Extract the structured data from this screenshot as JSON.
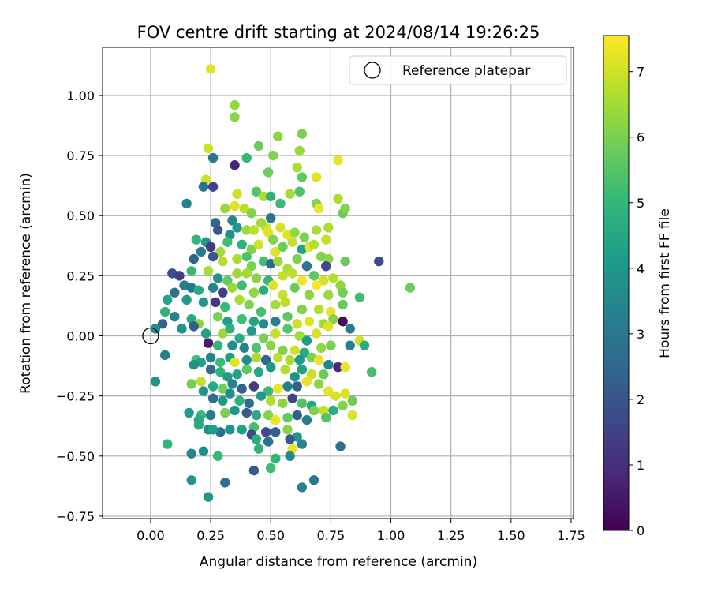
{
  "chart_data": {
    "type": "scatter",
    "title": "FOV centre drift starting at 2024/08/14 19:26:25",
    "xlabel": "Angular distance from reference (arcmin)",
    "ylabel": "Rotation from reference (arcmin)",
    "xlim": [
      -0.2,
      1.76
    ],
    "ylim": [
      -0.76,
      1.2
    ],
    "x_ticks": [
      "0.00",
      "0.25",
      "0.50",
      "0.75",
      "1.00",
      "1.25",
      "1.50",
      "1.75"
    ],
    "y_ticks": [
      "−0.75",
      "−0.50",
      "−0.25",
      "0.00",
      "0.25",
      "0.50",
      "0.75",
      "1.00"
    ],
    "grid": true,
    "legend": {
      "placement": "upper right",
      "entries": [
        {
          "label": "Reference platepar",
          "marker": "open circle",
          "x": 0,
          "y": 0
        }
      ]
    },
    "colorbar": {
      "label": "Hours from first FF file",
      "range": [
        0,
        7.55
      ],
      "ticks": [
        "0",
        "1",
        "2",
        "3",
        "4",
        "5",
        "6",
        "7"
      ],
      "colormap": "viridis",
      "stops": [
        "#440154",
        "#482878",
        "#3e4989",
        "#31688e",
        "#26828e",
        "#1f9e89",
        "#35b779",
        "#6ece58",
        "#b5de2b",
        "#fde725"
      ]
    },
    "points": [
      [
        0.25,
        1.11,
        7.2
      ],
      [
        0.35,
        0.96,
        6.3
      ],
      [
        0.35,
        0.91,
        6.2
      ],
      [
        0.24,
        0.78,
        7.0
      ],
      [
        0.26,
        0.74,
        3.0
      ],
      [
        0.35,
        0.71,
        0.8
      ],
      [
        0.4,
        0.74,
        5.1
      ],
      [
        0.45,
        0.79,
        5.8
      ],
      [
        0.53,
        0.83,
        6.2
      ],
      [
        0.63,
        0.84,
        6.0
      ],
      [
        0.51,
        0.75,
        6.1
      ],
      [
        0.62,
        0.77,
        6.4
      ],
      [
        0.61,
        0.7,
        6.6
      ],
      [
        0.78,
        0.73,
        7.3
      ],
      [
        0.49,
        0.68,
        5.8
      ],
      [
        0.63,
        0.66,
        5.7
      ],
      [
        0.69,
        0.66,
        7.2
      ],
      [
        0.23,
        0.65,
        7.0
      ],
      [
        0.22,
        0.62,
        2.9
      ],
      [
        0.26,
        0.62,
        1.6
      ],
      [
        0.36,
        0.59,
        7.0
      ],
      [
        0.44,
        0.6,
        5.5
      ],
      [
        0.47,
        0.58,
        6.6
      ],
      [
        0.5,
        0.58,
        4.8
      ],
      [
        0.54,
        0.55,
        5.1
      ],
      [
        0.58,
        0.59,
        6.5
      ],
      [
        0.62,
        0.6,
        5.4
      ],
      [
        0.69,
        0.55,
        6.1
      ],
      [
        0.78,
        0.57,
        6.6
      ],
      [
        0.8,
        0.51,
        5.8
      ],
      [
        0.81,
        0.53,
        6.1
      ],
      [
        0.7,
        0.53,
        7.3
      ],
      [
        0.15,
        0.55,
        3.4
      ],
      [
        0.31,
        0.53,
        6.4
      ],
      [
        0.35,
        0.54,
        7.2
      ],
      [
        0.39,
        0.53,
        6.8
      ],
      [
        0.42,
        0.51,
        6.1
      ],
      [
        0.5,
        0.49,
        2.9
      ],
      [
        0.27,
        0.47,
        2.5
      ],
      [
        0.34,
        0.48,
        3.6
      ],
      [
        0.4,
        0.44,
        6.4
      ],
      [
        0.43,
        0.44,
        6.8
      ],
      [
        0.48,
        0.45,
        7.0
      ],
      [
        0.49,
        0.43,
        7.2
      ],
      [
        0.46,
        0.47,
        6.5
      ],
      [
        0.54,
        0.45,
        7.1
      ],
      [
        0.57,
        0.42,
        7.2
      ],
      [
        0.6,
        0.43,
        6.3
      ],
      [
        0.64,
        0.41,
        6.0
      ],
      [
        0.69,
        0.44,
        6.6
      ],
      [
        0.74,
        0.45,
        6.6
      ],
      [
        0.73,
        0.4,
        6.9
      ],
      [
        0.28,
        0.44,
        2.0
      ],
      [
        0.33,
        0.42,
        3.8
      ],
      [
        0.36,
        0.45,
        4.0
      ],
      [
        0.19,
        0.4,
        5.0
      ],
      [
        0.23,
        0.39,
        4.0
      ],
      [
        0.25,
        0.37,
        1.3
      ],
      [
        0.29,
        0.35,
        6.5
      ],
      [
        0.32,
        0.39,
        5.2
      ],
      [
        0.38,
        0.38,
        4.8
      ],
      [
        0.42,
        0.36,
        6.1
      ],
      [
        0.45,
        0.38,
        7.0
      ],
      [
        0.51,
        0.4,
        6.1
      ],
      [
        0.52,
        0.35,
        7.2
      ],
      [
        0.55,
        0.37,
        5.8
      ],
      [
        0.59,
        0.39,
        6.9
      ],
      [
        0.63,
        0.36,
        4.4
      ],
      [
        0.66,
        0.37,
        7.3
      ],
      [
        0.68,
        0.38,
        6.7
      ],
      [
        0.71,
        0.33,
        6.1
      ],
      [
        0.74,
        0.32,
        6.2
      ],
      [
        0.18,
        0.32,
        2.5
      ],
      [
        0.21,
        0.35,
        3.1
      ],
      [
        0.26,
        0.33,
        2.0
      ],
      [
        0.3,
        0.31,
        6.7
      ],
      [
        0.36,
        0.32,
        6.6
      ],
      [
        0.4,
        0.33,
        5.4
      ],
      [
        0.42,
        0.29,
        6.0
      ],
      [
        0.47,
        0.31,
        5.3
      ],
      [
        0.5,
        0.3,
        2.6
      ],
      [
        0.53,
        0.31,
        6.4
      ],
      [
        0.57,
        0.28,
        6.6
      ],
      [
        0.61,
        0.32,
        6.0
      ],
      [
        0.65,
        0.29,
        3.0
      ],
      [
        0.73,
        0.29,
        1.7
      ],
      [
        0.81,
        0.31,
        5.8
      ],
      [
        0.95,
        0.31,
        1.7
      ],
      [
        0.09,
        0.26,
        1.8
      ],
      [
        0.12,
        0.25,
        1.4
      ],
      [
        0.17,
        0.27,
        5.1
      ],
      [
        0.24,
        0.27,
        6.6
      ],
      [
        0.28,
        0.24,
        3.8
      ],
      [
        0.32,
        0.23,
        5.7
      ],
      [
        0.36,
        0.26,
        6.4
      ],
      [
        0.4,
        0.26,
        6.5
      ],
      [
        0.44,
        0.24,
        6.2
      ],
      [
        0.49,
        0.23,
        5.0
      ],
      [
        0.55,
        0.25,
        6.9
      ],
      [
        0.59,
        0.26,
        6.8
      ],
      [
        0.63,
        0.23,
        7.4
      ],
      [
        0.68,
        0.25,
        5.6
      ],
      [
        0.72,
        0.23,
        7.1
      ],
      [
        0.76,
        0.24,
        6.7
      ],
      [
        0.79,
        0.21,
        6.3
      ],
      [
        0.14,
        0.21,
        3.2
      ],
      [
        0.17,
        0.2,
        2.9
      ],
      [
        0.2,
        0.19,
        4.6
      ],
      [
        0.26,
        0.2,
        3.4
      ],
      [
        0.3,
        0.18,
        1.4
      ],
      [
        0.34,
        0.2,
        6.4
      ],
      [
        0.38,
        0.21,
        5.2
      ],
      [
        0.43,
        0.18,
        6.3
      ],
      [
        0.47,
        0.19,
        4.6
      ],
      [
        0.51,
        0.21,
        7.2
      ],
      [
        0.55,
        0.17,
        6.9
      ],
      [
        0.6,
        0.2,
        5.8
      ],
      [
        0.66,
        0.17,
        6.2
      ],
      [
        0.69,
        0.21,
        7.5
      ],
      [
        0.74,
        0.17,
        6.4
      ],
      [
        0.8,
        0.18,
        5.9
      ],
      [
        0.87,
        0.16,
        5.2
      ],
      [
        1.08,
        0.2,
        5.8
      ],
      [
        0.07,
        0.15,
        4.4
      ],
      [
        0.1,
        0.18,
        2.8
      ],
      [
        0.15,
        0.15,
        4.1
      ],
      [
        0.22,
        0.14,
        3.9
      ],
      [
        0.27,
        0.14,
        1.2
      ],
      [
        0.31,
        0.12,
        5.1
      ],
      [
        0.37,
        0.15,
        6.6
      ],
      [
        0.41,
        0.13,
        6.1
      ],
      [
        0.46,
        0.1,
        5.3
      ],
      [
        0.52,
        0.13,
        6.5
      ],
      [
        0.56,
        0.14,
        6.8
      ],
      [
        0.63,
        0.11,
        6.1
      ],
      [
        0.7,
        0.11,
        6.7
      ],
      [
        0.75,
        0.1,
        7.3
      ],
      [
        0.8,
        0.13,
        5.7
      ],
      [
        0.06,
        0.1,
        4.8
      ],
      [
        0.1,
        0.08,
        3.4
      ],
      [
        0.17,
        0.07,
        4.5
      ],
      [
        0.2,
        0.05,
        6.2
      ],
      [
        0.28,
        0.08,
        6.0
      ],
      [
        0.32,
        0.06,
        4.2
      ],
      [
        0.38,
        0.07,
        5.2
      ],
      [
        0.43,
        0.06,
        4.4
      ],
      [
        0.47,
        0.05,
        3.6
      ],
      [
        0.52,
        0.06,
        3.2
      ],
      [
        0.57,
        0.08,
        5.6
      ],
      [
        0.61,
        0.05,
        7.0
      ],
      [
        0.66,
        0.06,
        7.2
      ],
      [
        0.72,
        0.05,
        6.5
      ],
      [
        0.76,
        0.07,
        6.1
      ],
      [
        0.8,
        0.06,
        0.2
      ],
      [
        0.83,
        0.03,
        3.2
      ],
      [
        0.05,
        0.05,
        2.3
      ],
      [
        0.02,
        0.03,
        3.6
      ],
      [
        0.13,
        0.03,
        3.9
      ],
      [
        0.18,
        0.04,
        2.2
      ],
      [
        0.23,
        0.01,
        4.3
      ],
      [
        0.3,
        0.01,
        6.4
      ],
      [
        0.33,
        0.03,
        4.8
      ],
      [
        0.37,
        -0.01,
        4.7
      ],
      [
        0.42,
        0.02,
        4.0
      ],
      [
        0.47,
        -0.01,
        6.0
      ],
      [
        0.52,
        0.01,
        6.9
      ],
      [
        0.57,
        0.03,
        5.5
      ],
      [
        0.62,
        0.0,
        6.5
      ],
      [
        0.65,
        -0.02,
        4.1
      ],
      [
        0.69,
        0.01,
        7.1
      ],
      [
        0.74,
        0.04,
        7.2
      ],
      [
        0.24,
        -0.03,
        0.6
      ],
      [
        0.28,
        -0.04,
        5.0
      ],
      [
        0.34,
        -0.04,
        3.7
      ],
      [
        0.39,
        -0.05,
        3.4
      ],
      [
        0.44,
        -0.05,
        5.4
      ],
      [
        0.5,
        -0.04,
        6.2
      ],
      [
        0.55,
        -0.06,
        6.1
      ],
      [
        0.6,
        -0.06,
        7.0
      ],
      [
        0.64,
        -0.07,
        4.6
      ],
      [
        0.71,
        -0.05,
        6.3
      ],
      [
        0.75,
        -0.04,
        6.0
      ],
      [
        0.83,
        -0.04,
        3.3
      ],
      [
        0.87,
        -0.02,
        7.0
      ],
      [
        0.89,
        -0.04,
        4.7
      ],
      [
        0.06,
        -0.08,
        3.3
      ],
      [
        0.19,
        -0.1,
        5.3
      ],
      [
        0.21,
        -0.11,
        4.3
      ],
      [
        0.25,
        -0.09,
        3.4
      ],
      [
        0.29,
        -0.11,
        5.1
      ],
      [
        0.33,
        -0.09,
        4.2
      ],
      [
        0.35,
        -0.11,
        7.2
      ],
      [
        0.4,
        -0.1,
        3.6
      ],
      [
        0.44,
        -0.09,
        6.6
      ],
      [
        0.48,
        -0.1,
        2.4
      ],
      [
        0.53,
        -0.09,
        6.8
      ],
      [
        0.58,
        -0.1,
        6.6
      ],
      [
        0.62,
        -0.1,
        4.0
      ],
      [
        0.67,
        -0.09,
        6.0
      ],
      [
        0.7,
        -0.1,
        7.3
      ],
      [
        0.74,
        -0.12,
        3.5
      ],
      [
        0.78,
        -0.13,
        0.9
      ],
      [
        0.81,
        -0.13,
        7.3
      ],
      [
        0.92,
        -0.15,
        5.3
      ],
      [
        0.18,
        -0.12,
        3.8
      ],
      [
        0.25,
        -0.14,
        2.7
      ],
      [
        0.29,
        -0.15,
        4.9
      ],
      [
        0.32,
        -0.17,
        4.1
      ],
      [
        0.36,
        -0.16,
        4.3
      ],
      [
        0.4,
        -0.14,
        5.6
      ],
      [
        0.45,
        -0.15,
        4.5
      ],
      [
        0.5,
        -0.13,
        4.0
      ],
      [
        0.56,
        -0.14,
        6.7
      ],
      [
        0.6,
        -0.17,
        3.8
      ],
      [
        0.63,
        -0.14,
        4.3
      ],
      [
        0.67,
        -0.16,
        6.9
      ],
      [
        0.72,
        -0.16,
        5.8
      ],
      [
        0.02,
        -0.19,
        3.9
      ],
      [
        0.17,
        -0.2,
        5.9
      ],
      [
        0.21,
        -0.19,
        6.9
      ],
      [
        0.26,
        -0.21,
        4.6
      ],
      [
        0.3,
        -0.22,
        5.9
      ],
      [
        0.34,
        -0.2,
        3.5
      ],
      [
        0.38,
        -0.22,
        2.4
      ],
      [
        0.43,
        -0.21,
        1.4
      ],
      [
        0.49,
        -0.23,
        5.1
      ],
      [
        0.53,
        -0.22,
        7.3
      ],
      [
        0.57,
        -0.21,
        3.2
      ],
      [
        0.61,
        -0.21,
        2.3
      ],
      [
        0.65,
        -0.19,
        7.3
      ],
      [
        0.7,
        -0.2,
        6.2
      ],
      [
        0.74,
        -0.23,
        7.3
      ],
      [
        0.77,
        -0.25,
        7.1
      ],
      [
        0.81,
        -0.24,
        7.2
      ],
      [
        0.84,
        -0.27,
        5.8
      ],
      [
        0.22,
        -0.23,
        3.9
      ],
      [
        0.26,
        -0.26,
        2.7
      ],
      [
        0.3,
        -0.27,
        4.0
      ],
      [
        0.33,
        -0.24,
        3.7
      ],
      [
        0.37,
        -0.27,
        4.8
      ],
      [
        0.41,
        -0.28,
        2.7
      ],
      [
        0.46,
        -0.25,
        4.1
      ],
      [
        0.5,
        -0.27,
        6.7
      ],
      [
        0.55,
        -0.28,
        6.2
      ],
      [
        0.59,
        -0.26,
        1.6
      ],
      [
        0.63,
        -0.28,
        5.4
      ],
      [
        0.67,
        -0.29,
        4.4
      ],
      [
        0.72,
        -0.31,
        6.9
      ],
      [
        0.76,
        -0.31,
        4.7
      ],
      [
        0.8,
        -0.29,
        6.1
      ],
      [
        0.84,
        -0.33,
        7.2
      ],
      [
        0.16,
        -0.32,
        4.2
      ],
      [
        0.21,
        -0.33,
        5.1
      ],
      [
        0.25,
        -0.33,
        3.1
      ],
      [
        0.31,
        -0.32,
        6.0
      ],
      [
        0.35,
        -0.31,
        3.9
      ],
      [
        0.4,
        -0.32,
        2.2
      ],
      [
        0.44,
        -0.33,
        4.6
      ],
      [
        0.49,
        -0.33,
        6.1
      ],
      [
        0.52,
        -0.35,
        7.3
      ],
      [
        0.57,
        -0.34,
        5.7
      ],
      [
        0.61,
        -0.33,
        2.3
      ],
      [
        0.65,
        -0.35,
        3.3
      ],
      [
        0.68,
        -0.31,
        6.0
      ],
      [
        0.73,
        -0.34,
        5.5
      ],
      [
        0.2,
        -0.37,
        4.6
      ],
      [
        0.24,
        -0.39,
        3.7
      ],
      [
        0.29,
        -0.4,
        2.8
      ],
      [
        0.33,
        -0.39,
        3.9
      ],
      [
        0.38,
        -0.39,
        4.3
      ],
      [
        0.43,
        -0.38,
        5.3
      ],
      [
        0.48,
        -0.4,
        1.7
      ],
      [
        0.52,
        -0.4,
        2.3
      ],
      [
        0.57,
        -0.39,
        6.2
      ],
      [
        0.61,
        -0.42,
        4.0
      ],
      [
        0.2,
        -0.35,
        4.5
      ],
      [
        0.26,
        -0.39,
        4.2
      ],
      [
        0.42,
        -0.41,
        1.7
      ],
      [
        0.44,
        -0.43,
        4.7
      ],
      [
        0.49,
        -0.44,
        2.8
      ],
      [
        0.58,
        -0.43,
        2.1
      ],
      [
        0.59,
        -0.47,
        7.3
      ],
      [
        0.63,
        -0.45,
        3.5
      ],
      [
        0.07,
        -0.45,
        4.9
      ],
      [
        0.17,
        -0.49,
        3.5
      ],
      [
        0.22,
        -0.48,
        3.7
      ],
      [
        0.28,
        -0.5,
        5.1
      ],
      [
        0.45,
        -0.47,
        4.9
      ],
      [
        0.52,
        -0.51,
        5.0
      ],
      [
        0.58,
        -0.5,
        3.6
      ],
      [
        0.79,
        -0.46,
        2.7
      ],
      [
        0.17,
        -0.6,
        3.9
      ],
      [
        0.31,
        -0.61,
        2.7
      ],
      [
        0.43,
        -0.56,
        2.1
      ],
      [
        0.5,
        -0.55,
        5.2
      ],
      [
        0.63,
        -0.63,
        3.3
      ],
      [
        0.68,
        -0.6,
        3.0
      ],
      [
        0.24,
        -0.67,
        4.0
      ]
    ]
  }
}
